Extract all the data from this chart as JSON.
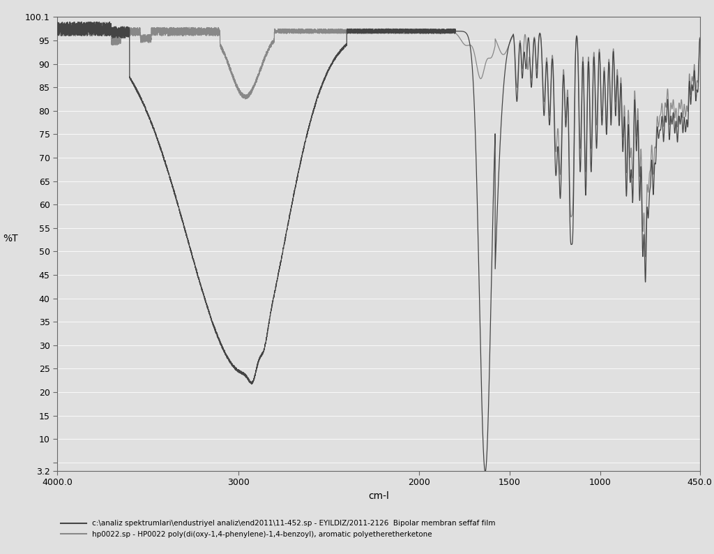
{
  "xlabel": "cm-l",
  "ylabel": "%T",
  "xlim": [
    4000.0,
    450.0
  ],
  "ylim": [
    3.2,
    100.1
  ],
  "yticks": [
    3.2,
    5,
    10,
    15,
    20,
    25,
    30,
    35,
    40,
    45,
    50,
    55,
    60,
    65,
    70,
    75,
    80,
    85,
    90,
    95,
    100.1
  ],
  "ytick_labels": [
    "3.2",
    "",
    "10",
    "15",
    "20",
    "25",
    "30",
    "35",
    "40",
    "45",
    "50",
    "55",
    "60",
    "65",
    "70",
    "75",
    "80",
    "85",
    "90",
    "95",
    "100.1"
  ],
  "xticks": [
    4000.0,
    3000,
    2000,
    1500,
    1000,
    450.0
  ],
  "xtick_labels": [
    "4000.0",
    "3000",
    "2000",
    "1500",
    "1000",
    "450.0"
  ],
  "legend1": "c:\\analiz spektrumlari\\endustriyel analiz\\end2011\\11-452.sp - EYILDIZ/2011-2126  Bipolar membran seffaf film",
  "legend2": "hp0022.sp - HP0022 poly(di(oxy-1,4-phenylene)-1,4-benzoyl), aromatic polyetheretherketone",
  "line_color1": "#444444",
  "line_color2": "#888888",
  "bg_color": "#e0e0e0"
}
